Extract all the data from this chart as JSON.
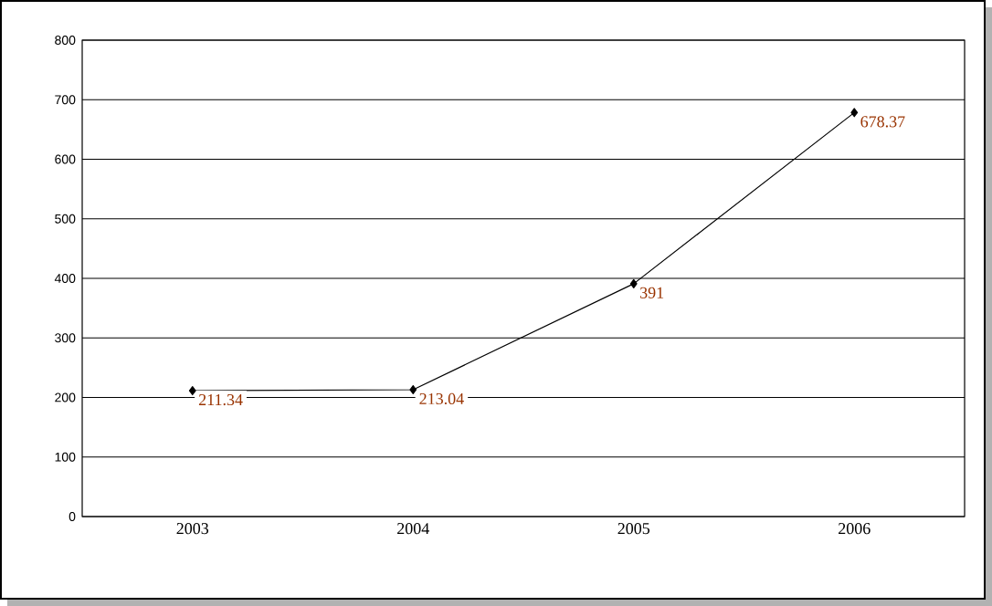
{
  "chart_data": {
    "type": "line",
    "categories": [
      "2003",
      "2004",
      "2005",
      "2006"
    ],
    "values": [
      211.34,
      213.04,
      391,
      678.37
    ],
    "color": "#000000",
    "marker": "diamond",
    "data_labels": true,
    "grid": "y",
    "ylim": [
      0,
      800
    ],
    "yticks": [
      0,
      100,
      200,
      300,
      400,
      500,
      600,
      700,
      800
    ]
  }
}
